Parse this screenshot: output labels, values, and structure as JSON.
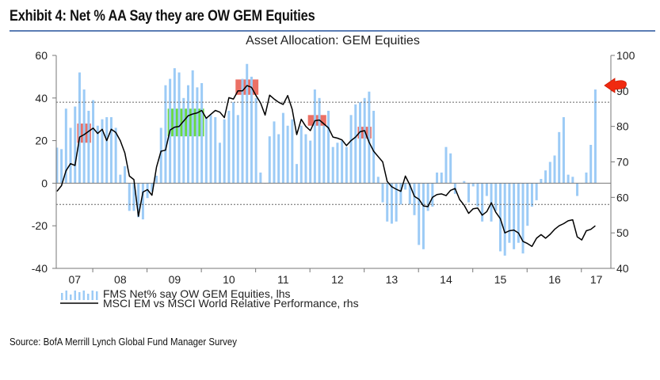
{
  "header": {
    "exhibit_title": "Exhibit 4: Net % AA Say they are OW GEM Equities",
    "rule_color": "#5b7db4"
  },
  "footer": {
    "source": "Source: BofA Merrill Lynch Global Fund Manager Survey"
  },
  "chart_data": {
    "type": "bar+line",
    "title": "Asset Allocation: GEM Equities",
    "x_tick_labels": [
      "07",
      "08",
      "09",
      "10",
      "11",
      "12",
      "13",
      "14",
      "15",
      "16",
      "17"
    ],
    "y_left": {
      "range": [
        -40,
        60
      ],
      "ticks": [
        -40,
        -20,
        0,
        20,
        40,
        60
      ]
    },
    "y_right": {
      "range": [
        40,
        100
      ],
      "ticks": [
        40,
        50,
        60,
        70,
        80,
        90,
        100
      ]
    },
    "reference_lines_lhs": [
      {
        "value": 38,
        "style": "dashed"
      },
      {
        "value": 0,
        "style": "solid"
      },
      {
        "value": -10,
        "style": "dashed"
      }
    ],
    "grid": false,
    "legend_placement": "bottom-left",
    "months": [
      "2007-05",
      "2007-06",
      "2007-07",
      "2007-08",
      "2007-09",
      "2007-10",
      "2007-11",
      "2007-12",
      "2008-01",
      "2008-02",
      "2008-03",
      "2008-04",
      "2008-05",
      "2008-06",
      "2008-07",
      "2008-08",
      "2008-09",
      "2008-10",
      "2008-11",
      "2008-12",
      "2009-01",
      "2009-02",
      "2009-03",
      "2009-04",
      "2009-05",
      "2009-06",
      "2009-07",
      "2009-08",
      "2009-09",
      "2009-10",
      "2009-11",
      "2009-12",
      "2010-01",
      "2010-02",
      "2010-03",
      "2010-04",
      "2010-05",
      "2010-06",
      "2010-07",
      "2010-08",
      "2010-09",
      "2010-10",
      "2010-11",
      "2010-12",
      "2011-01",
      "2011-02",
      "2011-03",
      "2011-04",
      "2011-05",
      "2011-06",
      "2011-07",
      "2011-08",
      "2011-09",
      "2011-10",
      "2011-11",
      "2011-12",
      "2012-01",
      "2012-02",
      "2012-03",
      "2012-04",
      "2012-05",
      "2012-06",
      "2012-07",
      "2012-08",
      "2012-09",
      "2012-10",
      "2012-11",
      "2012-12",
      "2013-01",
      "2013-02",
      "2013-03",
      "2013-04",
      "2013-05",
      "2013-06",
      "2013-07",
      "2013-08",
      "2013-09",
      "2013-10",
      "2013-11",
      "2013-12",
      "2014-01",
      "2014-02",
      "2014-03",
      "2014-04",
      "2014-05",
      "2014-06",
      "2014-07",
      "2014-08",
      "2014-09",
      "2014-10",
      "2014-11",
      "2014-12",
      "2015-01",
      "2015-02",
      "2015-03",
      "2015-04",
      "2015-05",
      "2015-06",
      "2015-07",
      "2015-08",
      "2015-09",
      "2015-10",
      "2015-11",
      "2015-12",
      "2016-01",
      "2016-02",
      "2016-03",
      "2016-04",
      "2016-05",
      "2016-06",
      "2016-07",
      "2016-08",
      "2016-09",
      "2016-10",
      "2016-11",
      "2016-12",
      "2017-01",
      "2017-02",
      "2017-03",
      "2017-04"
    ],
    "series": [
      {
        "name": "FMS Net% say OW GEM Equities, lhs",
        "type": "bar",
        "axis": "left",
        "color": "#9ccbf6",
        "values": [
          16.7,
          16,
          35,
          26,
          36,
          52,
          44,
          34,
          39,
          27,
          30,
          31,
          31,
          26,
          4,
          8,
          -13,
          -13,
          -16,
          -17,
          -7,
          -4,
          3.5,
          26,
          46,
          49,
          54,
          52,
          40,
          46,
          53,
          45,
          47,
          31,
          32,
          31,
          19,
          30,
          34,
          38,
          32,
          49,
          56,
          50,
          40,
          5,
          0,
          22,
          29,
          23,
          33,
          27,
          30,
          9,
          27,
          23,
          20,
          44,
          40,
          27,
          34,
          17,
          19,
          20,
          17,
          32,
          37,
          38,
          40,
          43,
          34,
          3,
          -9,
          -18,
          -19,
          -18,
          -10,
          -3,
          -10,
          -15,
          -29,
          -31,
          -13,
          -11,
          5,
          5,
          17,
          14,
          -5,
          0,
          1,
          -9,
          -1.5,
          -11,
          -18,
          -6,
          -18,
          -13,
          -32,
          -34,
          -28,
          -31,
          -28,
          -33,
          -20,
          -11,
          -8,
          2,
          6,
          10,
          13,
          24,
          31,
          4,
          3,
          -6,
          0,
          5,
          18,
          44
        ]
      },
      {
        "name": "MSCI EM vs MSCI World Relative Performance, rhs",
        "type": "line",
        "axis": "right",
        "color": "#000000",
        "values": [
          61.7,
          63.3,
          67.5,
          69.5,
          69,
          77,
          77.7,
          78.6,
          79.5,
          78,
          79.2,
          76,
          79.2,
          78.3,
          76,
          72.5,
          66,
          65,
          54.7,
          61.5,
          62.2,
          60.6,
          68.5,
          73,
          73.3,
          79,
          79.8,
          80,
          81.5,
          83,
          83.5,
          83.8,
          84.5,
          82.3,
          83.4,
          84.5,
          84,
          82.5,
          88.1,
          87.7,
          90,
          90,
          91.5,
          91,
          88.7,
          86.6,
          83.2,
          88.8,
          87.7,
          86.8,
          86.2,
          88.7,
          84.8,
          77.7,
          82,
          80,
          78.8,
          81.6,
          81.8,
          80.7,
          79.6,
          77,
          76.7,
          76.2,
          74.6,
          76,
          77,
          78.5,
          78.8,
          75.5,
          73,
          71.5,
          70,
          64.5,
          63,
          62.3,
          61.7,
          66,
          63.5,
          60.3,
          59.5,
          57.6,
          57.4,
          60,
          60.8,
          61,
          60.5,
          62,
          62.5,
          59.4,
          57.8,
          55.5,
          56.8,
          57,
          55,
          56,
          58.5,
          55.8,
          54,
          50,
          50.6,
          50.8,
          50,
          47.6,
          47,
          46.2,
          48.5,
          49.5,
          48.5,
          49.6,
          51,
          52,
          52.6,
          53.4,
          53.7,
          48.9,
          48,
          50.6,
          51,
          52
        ]
      }
    ],
    "highlights": [
      {
        "color": "#e8574a",
        "from": "2007-10",
        "to": "2007-12",
        "lhs_range": [
          19,
          28
        ]
      },
      {
        "color": "#4fd41e",
        "from": "2009-06",
        "to": "2010-01",
        "lhs_range": [
          22,
          35
        ]
      },
      {
        "color": "#e8574a",
        "from": "2010-09",
        "to": "2011-01",
        "lhs_range": [
          41.5,
          48.7
        ]
      },
      {
        "color": "#e8574a",
        "from": "2012-01",
        "to": "2012-04",
        "lhs_range": [
          27,
          32
        ]
      },
      {
        "color": "#e8574a",
        "from": "2012-12",
        "to": "2013-02",
        "lhs_range": [
          21,
          26.5
        ]
      }
    ],
    "annotation": {
      "icon": "red-arrow-left-icon",
      "color": "#f02a10",
      "points_to": "2017-04"
    }
  }
}
